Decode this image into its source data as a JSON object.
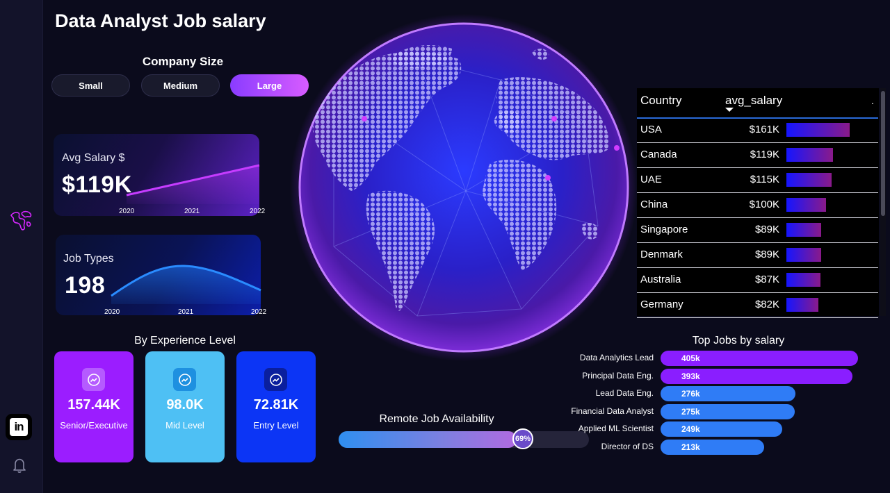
{
  "title": "Data Analyst Job salary",
  "company_size": {
    "title": "Company Size",
    "options": [
      "Small",
      "Medium",
      "Large"
    ],
    "selected": "Large"
  },
  "avg_salary_card": {
    "label": "Avg Salary $",
    "value": "$119K",
    "years": [
      "2020",
      "2021",
      "2022"
    ]
  },
  "job_types_card": {
    "label": "Job Types",
    "value": "198",
    "years": [
      "2020",
      "2021",
      "2022"
    ]
  },
  "experience": {
    "title": "By Experience Level",
    "cards": [
      {
        "value": "157.44K",
        "label": "Senior/Executive",
        "color": "#9b1dff",
        "icon_bg": "#b55bff"
      },
      {
        "value": "98.0K",
        "label": "Mid Level",
        "color": "#4ec0f4",
        "icon_bg": "#1e90e0"
      },
      {
        "value": "72.81K",
        "label": "Entry Level",
        "color": "#0c35f5",
        "icon_bg": "#0a1f9e"
      }
    ]
  },
  "remote": {
    "title": "Remote Job Availability",
    "value_label": "69%",
    "fraction": 0.69
  },
  "country_table": {
    "headers": {
      "country": "Country",
      "avg_salary": "avg_salary"
    },
    "rows": [
      {
        "country": "USA",
        "value": "$161K",
        "amount": 161
      },
      {
        "country": "Canada",
        "value": "$119K",
        "amount": 119
      },
      {
        "country": "UAE",
        "value": "$115K",
        "amount": 115
      },
      {
        "country": "China",
        "value": "$100K",
        "amount": 100
      },
      {
        "country": "Singapore",
        "value": "$89K",
        "amount": 89
      },
      {
        "country": "Denmark",
        "value": "$89K",
        "amount": 89
      },
      {
        "country": "Australia",
        "value": "$87K",
        "amount": 87
      },
      {
        "country": "Germany",
        "value": "$82K",
        "amount": 82
      }
    ]
  },
  "top_jobs": {
    "title": "Top Jobs by salary",
    "rows": [
      {
        "job": "Data Analytics Lead",
        "value": "405k",
        "amount": 405,
        "color": "#8a1eff"
      },
      {
        "job": "Principal Data Eng.",
        "value": "393k",
        "amount": 393,
        "color": "#8a1eff"
      },
      {
        "job": "Lead Data Eng.",
        "value": "276k",
        "amount": 276,
        "color": "#2f7cf6"
      },
      {
        "job": "Financial Data Analyst",
        "value": "275k",
        "amount": 275,
        "color": "#2f7cf6"
      },
      {
        "job": "Applied ML Scientist",
        "value": "249k",
        "amount": 249,
        "color": "#2f7cf6"
      },
      {
        "job": "Director of DS",
        "value": "213k",
        "amount": 213,
        "color": "#2f7cf6"
      }
    ]
  }
}
